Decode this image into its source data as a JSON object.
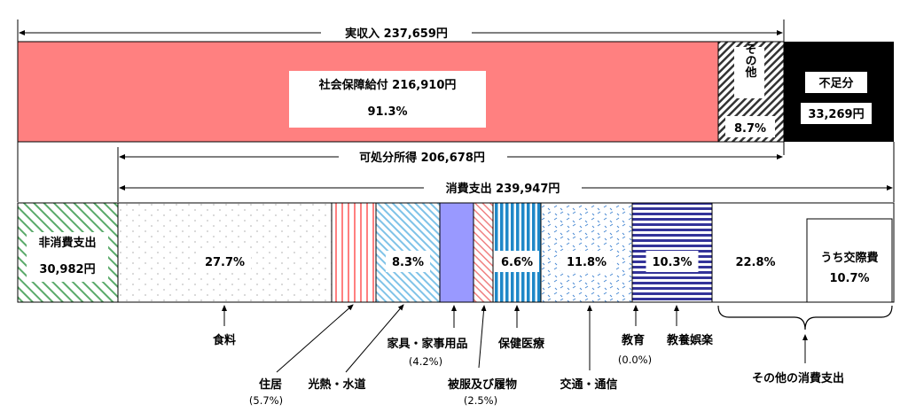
{
  "chart_data": {
    "type": "bar",
    "subtype": "stacked-horizontal-breakdown",
    "units": "円",
    "income_bar": {
      "total_label": "実収入 237,659円",
      "segments": [
        {
          "key": "social_security",
          "label": "社会保障給付 216,910円",
          "amount": 216910,
          "pct_label": "91.3%",
          "percent": 91.3
        },
        {
          "key": "other",
          "label": "その他",
          "pct_label": "8.7%",
          "percent": 8.7
        },
        {
          "key": "deficit",
          "label": "不足分",
          "amount_label": "33,269円",
          "amount": 33269
        }
      ]
    },
    "disposable_label": "可処分所得 206,678円",
    "disposable_income": 206678,
    "consumption_label": "消費支出 239,947円",
    "consumption_total": 239947,
    "non_consumption": {
      "label": "非消費支出",
      "amount_label": "30,982円",
      "amount": 30982
    },
    "expenditure_segments": [
      {
        "key": "food",
        "name": "食料",
        "percent": 27.7,
        "pct_label": "27.7%",
        "pct_inside": true
      },
      {
        "key": "housing",
        "name": "住居",
        "percent": 5.7,
        "pct_label": "(5.7%)",
        "pct_inside": false
      },
      {
        "key": "utilities",
        "name": "光熱・水道",
        "percent": 6.6,
        "pct_label": "",
        "pct_inside": false
      },
      {
        "key": "furniture",
        "name": "家具・家事用品",
        "percent": 4.2,
        "pct_label": "(4.2%)",
        "pct_inside": false,
        "inside_label": "8.3%"
      },
      {
        "key": "clothing",
        "name": "被服及び履物",
        "percent": 2.5,
        "pct_label": "(2.5%)",
        "pct_inside": false
      },
      {
        "key": "medical",
        "name": "保健医療",
        "percent": 6.6,
        "pct_label": "6.6%",
        "pct_inside": true
      },
      {
        "key": "transport",
        "name": "交通・通信",
        "percent": 11.8,
        "pct_label": "11.8%",
        "pct_inside": true
      },
      {
        "key": "education",
        "name": "教育",
        "percent": 0.0,
        "pct_label": "(0.0%)",
        "pct_inside": false
      },
      {
        "key": "recreation",
        "name": "教養娯楽",
        "percent": 10.3,
        "pct_label": "10.3%",
        "pct_inside": true
      },
      {
        "key": "other",
        "name": "その他の消費支出",
        "percent": 22.8,
        "pct_label": "22.8%",
        "pct_inside": true
      }
    ],
    "social_expense_note": {
      "label": "うち交際費",
      "pct_label": "10.7%",
      "percent": 10.7
    },
    "colors": {
      "social_security": "#ff8080",
      "deficit": "#000000",
      "non_consumption": "#5aaa6a",
      "housing": "#ff8080",
      "furniture": "#7fc3e8",
      "clothing": "#9999ff",
      "clothing_stroke": "#6666cc",
      "medical": "#1f88c8",
      "transport": "#4a8ad4",
      "recreation": "#333399",
      "food_dots": "#bfbfbf",
      "misc_stripes": "#f08080"
    }
  }
}
